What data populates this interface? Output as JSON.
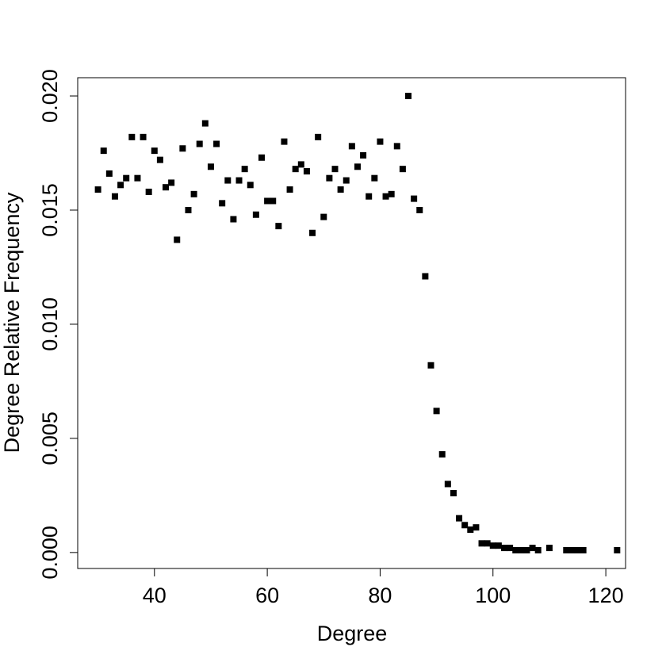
{
  "chart_data": {
    "type": "scatter",
    "xlabel": "Degree",
    "ylabel": "Degree Relative Frequency",
    "color": "#000000",
    "x": [
      30,
      31,
      32,
      33,
      34,
      35,
      36,
      37,
      38,
      39,
      40,
      41,
      42,
      43,
      44,
      45,
      46,
      47,
      48,
      49,
      50,
      51,
      52,
      53,
      54,
      55,
      56,
      57,
      58,
      59,
      60,
      61,
      62,
      63,
      64,
      65,
      66,
      67,
      68,
      69,
      70,
      71,
      72,
      73,
      74,
      75,
      76,
      77,
      78,
      79,
      80,
      81,
      82,
      83,
      84,
      85,
      86,
      87,
      88,
      89,
      90,
      91,
      92,
      93,
      94,
      95,
      96,
      97,
      98,
      99,
      100,
      101,
      102,
      103,
      104,
      105,
      106,
      107,
      108,
      110,
      113,
      114,
      115,
      116,
      122
    ],
    "values": [
      0.0159,
      0.0176,
      0.0166,
      0.0156,
      0.0161,
      0.0164,
      0.0182,
      0.0164,
      0.0182,
      0.0158,
      0.0176,
      0.0172,
      0.016,
      0.0162,
      0.0137,
      0.0177,
      0.015,
      0.0157,
      0.0179,
      0.0188,
      0.0169,
      0.0179,
      0.0153,
      0.0163,
      0.0146,
      0.0163,
      0.0168,
      0.0161,
      0.0148,
      0.0173,
      0.0154,
      0.0154,
      0.0143,
      0.018,
      0.0159,
      0.0168,
      0.017,
      0.0167,
      0.014,
      0.0182,
      0.0147,
      0.0164,
      0.0168,
      0.0159,
      0.0163,
      0.0178,
      0.0169,
      0.0174,
      0.0156,
      0.0164,
      0.018,
      0.0156,
      0.0157,
      0.0178,
      0.0168,
      0.02,
      0.0155,
      0.015,
      0.0121,
      0.0082,
      0.0062,
      0.0043,
      0.003,
      0.0026,
      0.0015,
      0.0012,
      0.001,
      0.0011,
      0.0004,
      0.0004,
      0.0003,
      0.0003,
      0.0002,
      0.0002,
      0.0001,
      0.0001,
      0.0001,
      0.0002,
      0.0001,
      0.0002,
      0.0001,
      0.0001,
      0.0001,
      0.0001,
      0.0001
    ],
    "xlim": [
      26.4,
      123.5
    ],
    "ylim": [
      -0.0007,
      0.0208
    ],
    "xticks": [
      40,
      60,
      80,
      100,
      120
    ],
    "yticks": [
      {
        "value": 0,
        "label": "0.000"
      },
      {
        "value": 0.005,
        "label": "0.005"
      },
      {
        "value": 0.01,
        "label": "0.010"
      },
      {
        "value": 0.015,
        "label": "0.015"
      },
      {
        "value": 0.02,
        "label": "0.020"
      }
    ]
  }
}
